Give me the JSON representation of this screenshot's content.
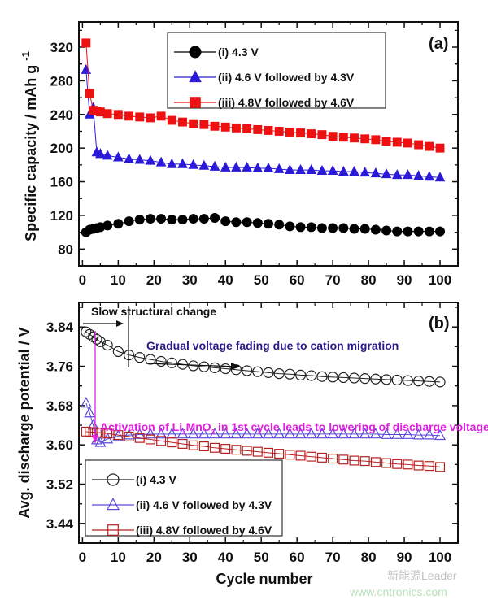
{
  "chart_data": [
    {
      "type": "scatter",
      "panel_label": "(a)",
      "xlabel": "",
      "ylabel": "Specific capacity / mAh g",
      "ylabel_superscript": "-1",
      "xlim": [
        -1,
        105
      ],
      "ylim": [
        60,
        350
      ],
      "xticks": [
        "0",
        "10",
        "20",
        "30",
        "40",
        "50",
        "60",
        "70",
        "80",
        "90",
        "100"
      ],
      "yticks": [
        "80",
        "120",
        "160",
        "200",
        "240",
        "280",
        "320"
      ],
      "legend_position": "top-center",
      "x": [
        1,
        2,
        3,
        4,
        5,
        7,
        10,
        13,
        16,
        19,
        22,
        25,
        28,
        31,
        34,
        37,
        40,
        43,
        46,
        49,
        52,
        55,
        58,
        61,
        64,
        67,
        70,
        73,
        76,
        79,
        82,
        85,
        88,
        91,
        94,
        97,
        100
      ],
      "series": [
        {
          "name": "(i) 4.3 V",
          "color": "#000000",
          "marker": "circle-filled",
          "values": [
            100,
            103,
            104,
            105,
            106,
            108,
            110,
            113,
            115,
            116,
            116,
            115,
            115,
            116,
            116,
            117,
            113,
            112,
            112,
            111,
            110,
            109,
            107,
            106,
            106,
            105,
            105,
            105,
            104,
            104,
            103,
            102,
            101,
            101,
            101,
            101,
            101
          ]
        },
        {
          "name": "(ii) 4.6 V followed by 4.3V",
          "color": "#2a1ad8",
          "marker": "triangle-filled",
          "values": [
            293,
            240,
            248,
            195,
            193,
            191,
            189,
            187,
            186,
            185,
            183,
            181,
            181,
            180,
            179,
            178,
            177,
            177,
            177,
            176,
            176,
            175,
            174,
            174,
            174,
            173,
            173,
            172,
            172,
            171,
            170,
            169,
            168,
            168,
            167,
            166,
            165
          ]
        },
        {
          "name": "(iii) 4.8V followed by 4.6V",
          "color": "#ee1111",
          "marker": "square-filled",
          "values": [
            325,
            265,
            245,
            244,
            243,
            241,
            240,
            238,
            237,
            236,
            238,
            233,
            231,
            229,
            228,
            226,
            225,
            224,
            223,
            222,
            221,
            220,
            219,
            218,
            217,
            216,
            214,
            213,
            212,
            211,
            210,
            208,
            207,
            206,
            204,
            202,
            200
          ]
        }
      ]
    },
    {
      "type": "scatter",
      "panel_label": "(b)",
      "xlabel": "Cycle number",
      "ylabel": "Avg. discharge potential / V",
      "xlim": [
        -1,
        105
      ],
      "ylim": [
        3.4,
        3.89
      ],
      "xticks": [
        "0",
        "10",
        "20",
        "30",
        "40",
        "50",
        "60",
        "70",
        "80",
        "90",
        "100"
      ],
      "yticks": [
        "3.44",
        "3.52",
        "3.60",
        "3.68",
        "3.76",
        "3.84"
      ],
      "legend_position": "bottom-left",
      "x": [
        1,
        2,
        3,
        4,
        5,
        7,
        10,
        13,
        16,
        19,
        22,
        25,
        28,
        31,
        34,
        37,
        40,
        43,
        46,
        49,
        52,
        55,
        58,
        61,
        64,
        67,
        70,
        73,
        76,
        79,
        82,
        85,
        88,
        91,
        94,
        97,
        100
      ],
      "series": [
        {
          "name": "(i) 4.3 V",
          "color": "#222222",
          "marker": "circle-open",
          "values": [
            3.83,
            3.825,
            3.82,
            3.815,
            3.81,
            3.803,
            3.79,
            3.783,
            3.778,
            3.774,
            3.77,
            3.767,
            3.764,
            3.761,
            3.759,
            3.757,
            3.755,
            3.753,
            3.751,
            3.749,
            3.747,
            3.745,
            3.744,
            3.742,
            3.741,
            3.739,
            3.738,
            3.737,
            3.736,
            3.735,
            3.734,
            3.733,
            3.732,
            3.731,
            3.73,
            3.729,
            3.728
          ]
        },
        {
          "name": "(ii) 4.6 V followed by 4.3V",
          "color": "#5a4ad8",
          "marker": "triangle-open",
          "values": [
            3.685,
            3.665,
            3.64,
            3.61,
            3.605,
            3.612,
            3.618,
            3.62,
            3.621,
            3.622,
            3.622,
            3.622,
            3.622,
            3.622,
            3.622,
            3.622,
            3.622,
            3.622,
            3.622,
            3.622,
            3.622,
            3.622,
            3.622,
            3.622,
            3.622,
            3.622,
            3.622,
            3.622,
            3.622,
            3.622,
            3.622,
            3.621,
            3.621,
            3.621,
            3.62,
            3.62,
            3.619
          ]
        },
        {
          "name": "(iii) 4.8V followed by 4.6V",
          "color": "#b52020",
          "marker": "square-open",
          "values": [
            3.627,
            3.626,
            3.626,
            3.625,
            3.625,
            3.623,
            3.62,
            3.617,
            3.614,
            3.611,
            3.608,
            3.605,
            3.602,
            3.599,
            3.597,
            3.594,
            3.592,
            3.59,
            3.588,
            3.586,
            3.584,
            3.582,
            3.58,
            3.578,
            3.576,
            3.574,
            3.572,
            3.57,
            3.568,
            3.567,
            3.565,
            3.563,
            3.561,
            3.56,
            3.558,
            3.557,
            3.555
          ]
        }
      ],
      "annotations": {
        "slow_change": "Slow structural change",
        "gradual_fading": "Gradual voltage fading due to cation migration",
        "gradual_fading_color": "#2a1a8a",
        "activation_prefix": "Activation of Li",
        "activation_sub1": "2",
        "activation_mid": "MnO",
        "activation_sub2": "3",
        "activation_suffix": " in 1st cycle leads to lowering of discharge voltage",
        "activation_color": "#e020e0"
      }
    }
  ],
  "watermark": {
    "line1": "新能源Leader",
    "line2": "www.cntronics.com"
  }
}
